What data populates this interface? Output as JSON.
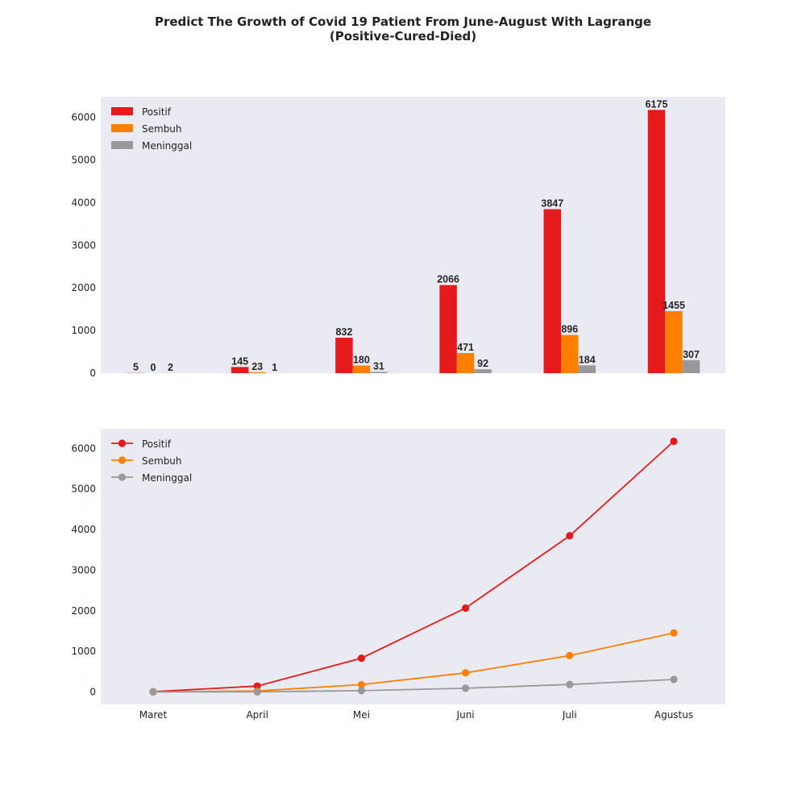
{
  "chart_data": {
    "title": [
      "Predict The Growth of Covid 19 Patient From June-August With Lagrange",
      "(Positive-Cured-Died)"
    ],
    "categories": [
      "Maret",
      "April",
      "Mei",
      "Juni",
      "Juli",
      "Agustus"
    ],
    "series": [
      {
        "name": "Positif",
        "values": [
          5,
          145,
          832,
          2066,
          3847,
          6175
        ],
        "color": "#e41a1c"
      },
      {
        "name": "Sembuh",
        "values": [
          0,
          23,
          180,
          471,
          896,
          1455
        ],
        "color": "#ff7f00"
      },
      {
        "name": "Meninggal",
        "values": [
          2,
          1,
          31,
          92,
          184,
          307
        ],
        "color": "#999999"
      }
    ],
    "panels": [
      {
        "type": "bar",
        "ylim": [
          0,
          6484
        ],
        "yticks": [
          0,
          1000,
          2000,
          3000,
          4000,
          5000,
          6000
        ],
        "legend": "top-left",
        "grid": false,
        "show_xticks": false,
        "data_labels": true
      },
      {
        "type": "line",
        "ylim": [
          -308,
          6483
        ],
        "yticks": [
          0,
          1000,
          2000,
          3000,
          4000,
          5000,
          6000
        ],
        "legend": "top-left",
        "grid": false,
        "show_xticks": true,
        "markers": true
      }
    ],
    "background": "#eaeaf2"
  }
}
